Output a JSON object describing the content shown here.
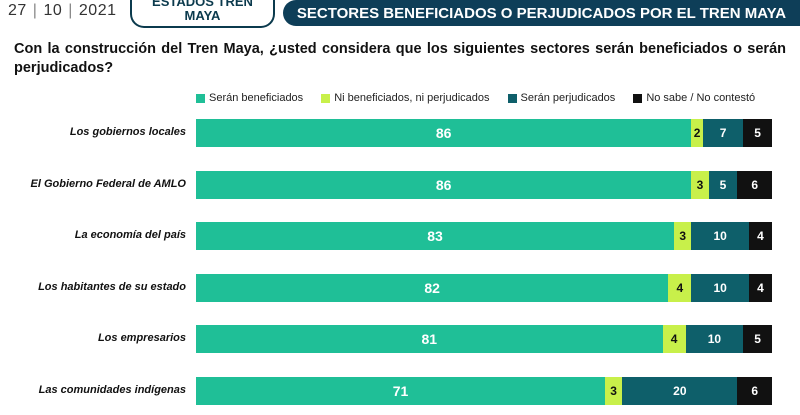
{
  "header": {
    "date_parts": [
      "27",
      "10",
      "2021"
    ],
    "left_title_line1": "ESTADOS TREN",
    "left_title_line2": "MAYA",
    "main_title": "SECTORES BENEFICIADOS O PERJUDICADOS POR EL TREN MAYA"
  },
  "question": "Con la construcción del Tren Maya, ¿usted considera que los siguientes sectores serán beneficiados o serán perjudicados?",
  "colors": {
    "beneficiados": "#1fbf97",
    "ni": "#c8f04a",
    "perjudicados": "#0e5f6a",
    "no_sabe": "#111111"
  },
  "chart_data": {
    "type": "bar",
    "orientation": "horizontal",
    "stacked": true,
    "legend_position": "top",
    "xlim": [
      0,
      100
    ],
    "categories": [
      "Los gobiernos locales",
      "El Gobierno Federal de AMLO",
      "La economía del país",
      "Los habitantes de su estado",
      "Los empresarios",
      "Las comunidades indígenas"
    ],
    "series": [
      {
        "name": "Serán beneficiados",
        "key": "beneficiados",
        "values": [
          86,
          86,
          83,
          82,
          81,
          71
        ]
      },
      {
        "name": "Ni beneficiados, ni perjudicados",
        "key": "ni",
        "values": [
          2,
          3,
          3,
          4,
          4,
          3
        ]
      },
      {
        "name": "Serán perjudicados",
        "key": "perjudicados",
        "values": [
          7,
          5,
          10,
          10,
          10,
          20
        ]
      },
      {
        "name": "No sabe / No contestó",
        "key": "no_sabe",
        "values": [
          5,
          6,
          4,
          4,
          5,
          6
        ]
      }
    ]
  }
}
